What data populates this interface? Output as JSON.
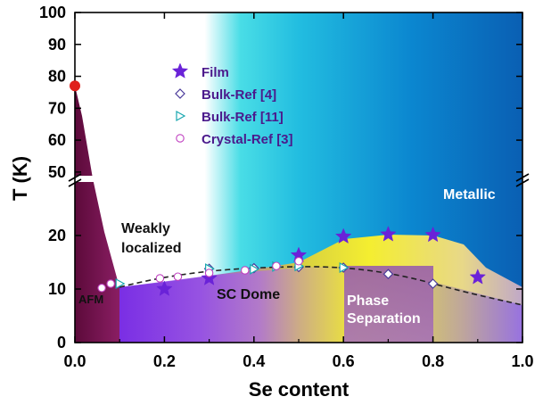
{
  "chart_data": {
    "type": "scatter",
    "xlabel": "Se content",
    "ylabel": "T (K)",
    "xlim": [
      0.0,
      1.0
    ],
    "xticks": [
      "0.0",
      "0.2",
      "0.4",
      "0.6",
      "0.8",
      "1.0"
    ],
    "y_axis_break": true,
    "y_lower_range": [
      0,
      30
    ],
    "y_lower_ticks": [
      "0",
      "10",
      "20"
    ],
    "y_upper_range": [
      48,
      100
    ],
    "y_upper_ticks": [
      "50",
      "60",
      "70",
      "80",
      "90",
      "100"
    ],
    "region_labels": [
      "AFM",
      "Weakly\nlocalized",
      "SC Dome",
      "Phase\nSeparation",
      "Metallic"
    ],
    "legend": [
      "Film",
      "Bulk-Ref [4]",
      "Bulk-Ref [11]",
      "Crystal-Ref [3]"
    ],
    "legend_position": "upper-left-center",
    "series": [
      {
        "name": "Film",
        "marker": "star",
        "color": "#6a22d8",
        "x": [
          0.2,
          0.3,
          0.5,
          0.6,
          0.7,
          0.8,
          0.9
        ],
        "y": [
          10,
          12,
          16.3,
          19.8,
          20.2,
          20.1,
          12.2
        ]
      },
      {
        "name": "Bulk-Ref [4]",
        "marker": "diamond-open",
        "color": "#4a3a9a",
        "x": [
          0.3,
          0.4,
          0.5,
          0.6,
          0.7,
          0.8
        ],
        "y": [
          13.8,
          13.9,
          14.1,
          14.0,
          12.8,
          11.0
        ]
      },
      {
        "name": "Bulk-Ref [11]",
        "marker": "triangle-right-open",
        "color": "#1aa8b0",
        "x": [
          0.1,
          0.3,
          0.4,
          0.45,
          0.5,
          0.6
        ],
        "y": [
          11.0,
          13.8,
          13.7,
          14.2,
          14.3,
          14.0
        ]
      },
      {
        "name": "Crystal-Ref [3]",
        "marker": "circle-open",
        "color": "#c040c0",
        "x": [
          0.06,
          0.08,
          0.19,
          0.23,
          0.3,
          0.38,
          0.45,
          0.5
        ],
        "y": [
          10.2,
          11.0,
          12.0,
          12.3,
          13.0,
          13.5,
          14.3,
          15.2
        ]
      },
      {
        "name": "",
        "marker": "filled-circle",
        "color": "#e0201c",
        "x": [
          0.0
        ],
        "y": [
          77
        ]
      }
    ]
  }
}
